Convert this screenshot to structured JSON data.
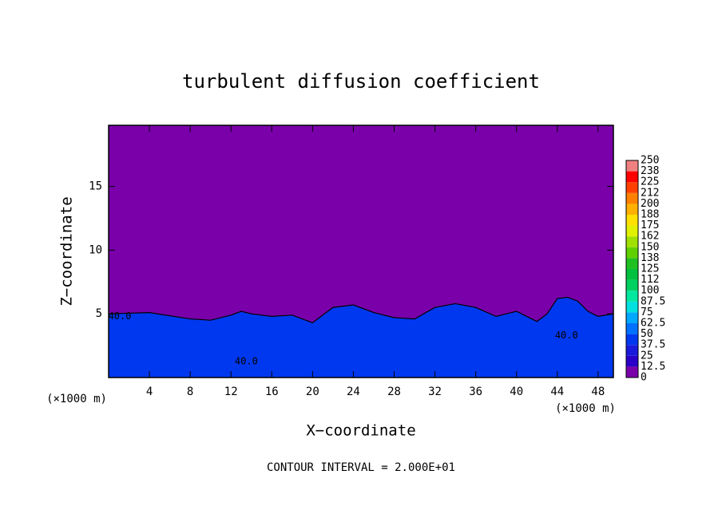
{
  "chart_data": {
    "type": "contour",
    "title": "turbulent diffusion coefficient",
    "x_label": "X−coordinate",
    "y_label": "Z−coordinate",
    "x_unit_label": "(×1000 m)",
    "y_unit_label": "(×1000 m)",
    "footnote": "CONTOUR INTERVAL = 2.000E+01",
    "xlim": [
      0,
      49.5
    ],
    "ylim": [
      0,
      19.8
    ],
    "xticks": [
      4,
      8,
      12,
      16,
      20,
      24,
      28,
      32,
      36,
      40,
      44,
      48
    ],
    "yticks": [
      5,
      10,
      15
    ],
    "background_level": 0,
    "layer": {
      "level": 37.5,
      "x": [
        0,
        4,
        8,
        10,
        12,
        13,
        14,
        16,
        18,
        20,
        22,
        24,
        26,
        28,
        30,
        32,
        34,
        36,
        38,
        40,
        42,
        43,
        44,
        45,
        46,
        47,
        48,
        49.5
      ],
      "z_top": [
        5,
        5.1,
        4.6,
        4.5,
        4.9,
        5.2,
        5.0,
        4.8,
        4.9,
        4.3,
        5.5,
        5.7,
        5.1,
        4.7,
        4.6,
        5.5,
        5.8,
        5.5,
        4.8,
        5.2,
        4.4,
        5.0,
        6.2,
        6.3,
        6.0,
        5.2,
        4.8,
        5.0
      ]
    },
    "contour_labels": [
      {
        "value": 40,
        "label": "40.0",
        "x": 1.1,
        "z": 4.8
      },
      {
        "value": 40,
        "label": "40.0",
        "x": 13.5,
        "z": 1.25
      },
      {
        "value": 40,
        "label": "40.0",
        "x": 44.9,
        "z": 3.3
      }
    ],
    "colorbar": {
      "levels": [
        0,
        12.5,
        25,
        37.5,
        50,
        62.5,
        75,
        87.5,
        100,
        112,
        125,
        138,
        150,
        162,
        175,
        188,
        200,
        212,
        225,
        238,
        250
      ],
      "colors": [
        "#7a00aa",
        "#2a00c8",
        "#1a1adc",
        "#0038f0",
        "#0070ff",
        "#00a8ff",
        "#00e0e0",
        "#00e8a0",
        "#00d060",
        "#00c040",
        "#20c020",
        "#60d000",
        "#a0e000",
        "#e0f000",
        "#ffe000",
        "#ffb000",
        "#ff8000",
        "#ff4000",
        "#ff0000",
        "#f08080"
      ]
    }
  }
}
